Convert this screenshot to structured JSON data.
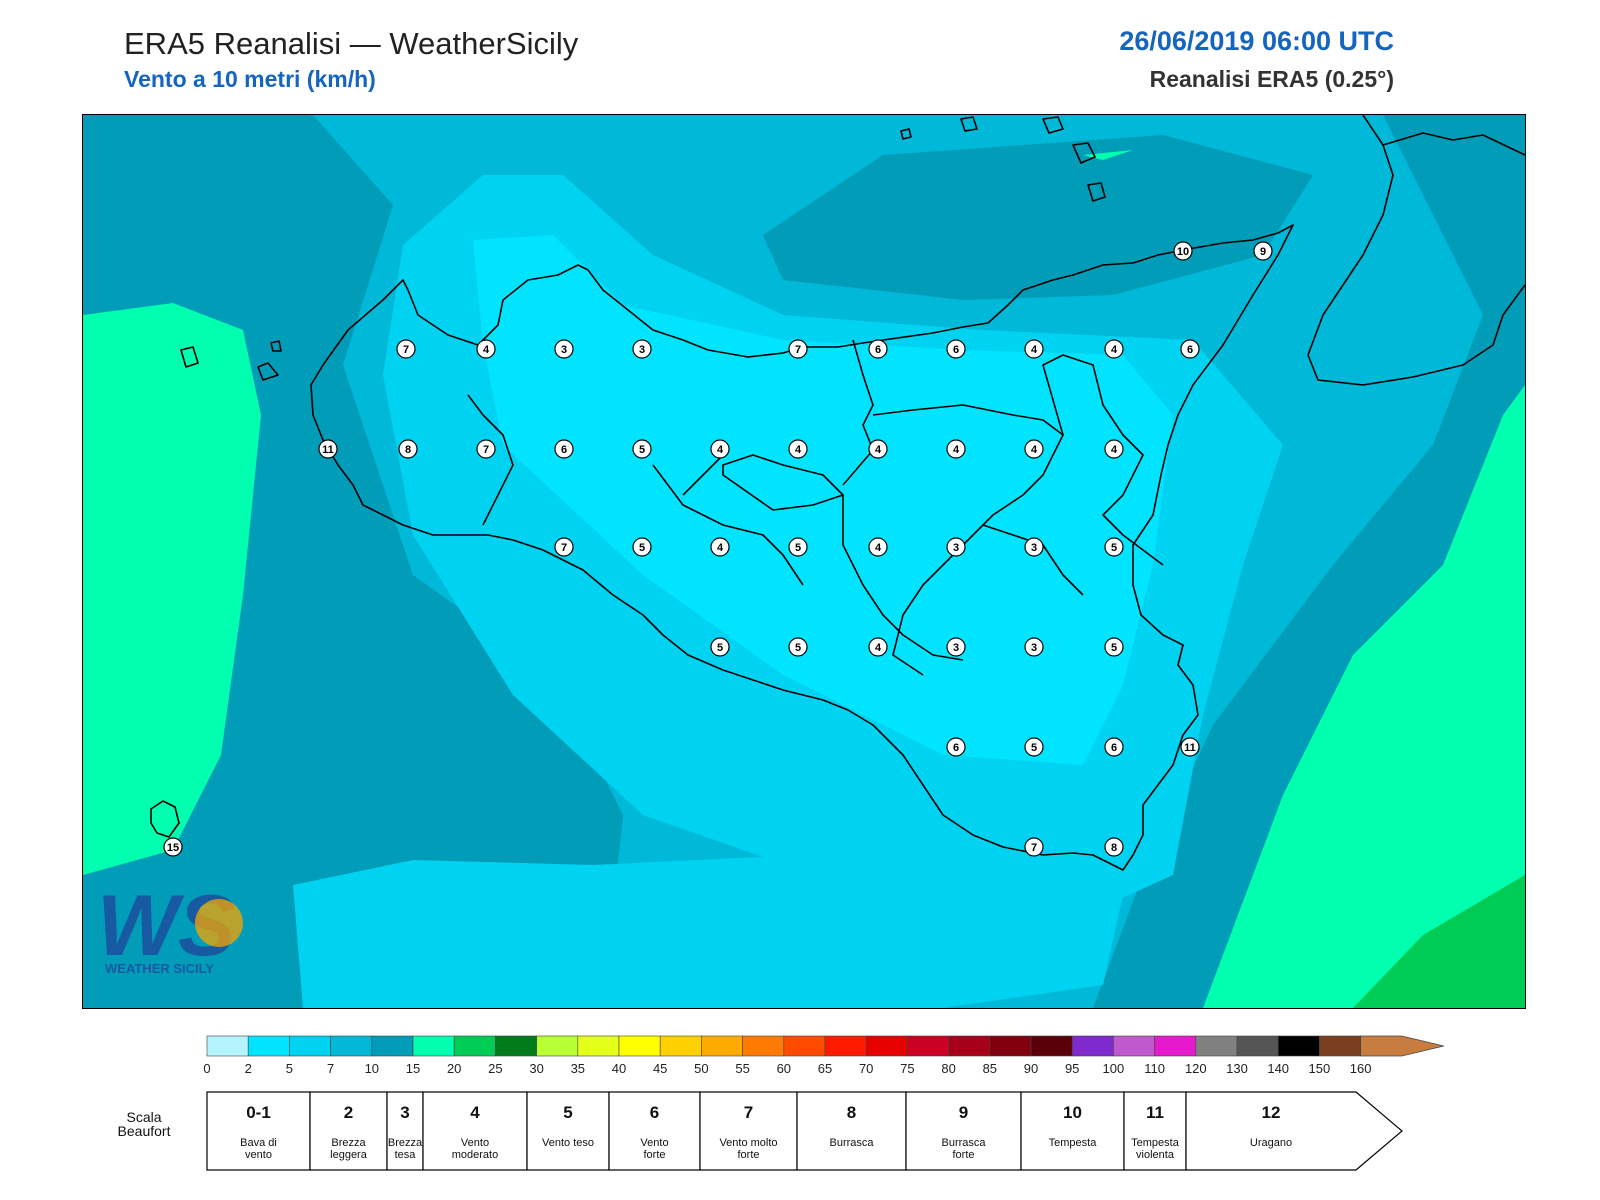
{
  "header": {
    "title": "ERA5 Reanalisi — WeatherSicily",
    "subtitle": "Vento a 10 metri (km/h)",
    "datetime": "26/06/2019 06:00 UTC",
    "source": "Reanalisi ERA5 (0.25°)"
  },
  "logo": {
    "text": "WEATHER SICILY"
  },
  "station_values": [
    [
      "10",
      "9"
    ],
    [
      "7",
      "4",
      "3",
      "3",
      "7",
      "6",
      "6",
      "4",
      "4",
      "6"
    ],
    [
      "11",
      "8",
      "7",
      "6",
      "5",
      "4",
      "4",
      "4",
      "4",
      "4",
      "4"
    ],
    [
      "7",
      "5",
      "4",
      "5",
      "4",
      "3",
      "3",
      "5"
    ],
    [
      "5",
      "5",
      "4",
      "3",
      "3",
      "5"
    ],
    [
      "6",
      "5",
      "6",
      "11"
    ],
    [
      "7",
      "8"
    ],
    [
      "15"
    ]
  ],
  "colorbar": {
    "colors": [
      "#b3f4ff",
      "#00e4ff",
      "#00d2f2",
      "#00b8d8",
      "#009cb8",
      "#00ffae",
      "#00cc55",
      "#007a1a",
      "#b8ff33",
      "#e4ff1a",
      "#ffff00",
      "#ffd000",
      "#ffaa00",
      "#ff7a00",
      "#ff4a00",
      "#ff1a00",
      "#e60000",
      "#cc0022",
      "#a8001a",
      "#800010",
      "#5a0008",
      "#7f2acc",
      "#c05acc",
      "#e619cc",
      "#808080",
      "#555555",
      "#000000",
      "#7a3f1f",
      "#c77d3f"
    ],
    "ticks": [
      "0",
      "2",
      "5",
      "7",
      "10",
      "15",
      "20",
      "25",
      "30",
      "35",
      "40",
      "45",
      "50",
      "55",
      "60",
      "65",
      "70",
      "75",
      "80",
      "85",
      "90",
      "95",
      "100",
      "110",
      "120",
      "130",
      "140",
      "150",
      "160"
    ]
  },
  "beaufort": {
    "label_line1": "Scala",
    "label_line2": "Beaufort",
    "cells": [
      {
        "num": "0-1",
        "l1": "Bava di",
        "l2": "vento"
      },
      {
        "num": "2",
        "l1": "Brezza",
        "l2": "leggera"
      },
      {
        "num": "3",
        "l1": "Brezza",
        "l2": "tesa"
      },
      {
        "num": "4",
        "l1": "Vento",
        "l2": "moderato"
      },
      {
        "num": "5",
        "l1": "Vento teso",
        "l2": ""
      },
      {
        "num": "6",
        "l1": "Vento",
        "l2": "forte"
      },
      {
        "num": "7",
        "l1": "Vento molto",
        "l2": "forte"
      },
      {
        "num": "8",
        "l1": "Burrasca",
        "l2": ""
      },
      {
        "num": "9",
        "l1": "Burrasca",
        "l2": "forte"
      },
      {
        "num": "10",
        "l1": "Tempesta",
        "l2": ""
      },
      {
        "num": "11",
        "l1": "Tempesta",
        "l2": "violenta"
      },
      {
        "num": "12",
        "l1": "Uragano",
        "l2": ""
      }
    ]
  }
}
